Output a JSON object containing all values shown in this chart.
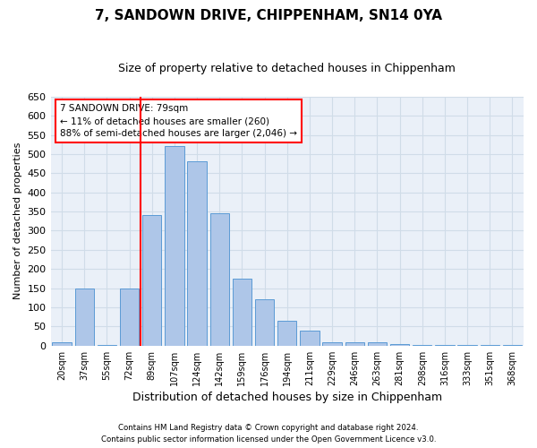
{
  "title": "7, SANDOWN DRIVE, CHIPPENHAM, SN14 0YA",
  "subtitle": "Size of property relative to detached houses in Chippenham",
  "xlabel": "Distribution of detached houses by size in Chippenham",
  "ylabel": "Number of detached properties",
  "footnote1": "Contains HM Land Registry data © Crown copyright and database right 2024.",
  "footnote2": "Contains public sector information licensed under the Open Government Licence v3.0.",
  "categories": [
    "20sqm",
    "37sqm",
    "55sqm",
    "72sqm",
    "89sqm",
    "107sqm",
    "124sqm",
    "142sqm",
    "159sqm",
    "176sqm",
    "194sqm",
    "211sqm",
    "229sqm",
    "246sqm",
    "263sqm",
    "281sqm",
    "298sqm",
    "316sqm",
    "333sqm",
    "351sqm",
    "368sqm"
  ],
  "values": [
    10,
    150,
    2,
    150,
    340,
    520,
    480,
    345,
    175,
    120,
    65,
    40,
    10,
    10,
    10,
    5,
    2,
    2,
    2,
    2,
    2
  ],
  "bar_color": "#aec6e8",
  "bar_edge_color": "#5b9bd5",
  "grid_color": "#d0dce8",
  "bg_color": "#eaf0f8",
  "annotation_text": "7 SANDOWN DRIVE: 79sqm\n← 11% of detached houses are smaller (260)\n88% of semi-detached houses are larger (2,046) →",
  "annotation_box_color": "white",
  "annotation_box_edge": "red",
  "ylim": [
    0,
    650
  ],
  "yticks": [
    0,
    50,
    100,
    150,
    200,
    250,
    300,
    350,
    400,
    450,
    500,
    550,
    600,
    650
  ],
  "red_line_index": 3.5
}
